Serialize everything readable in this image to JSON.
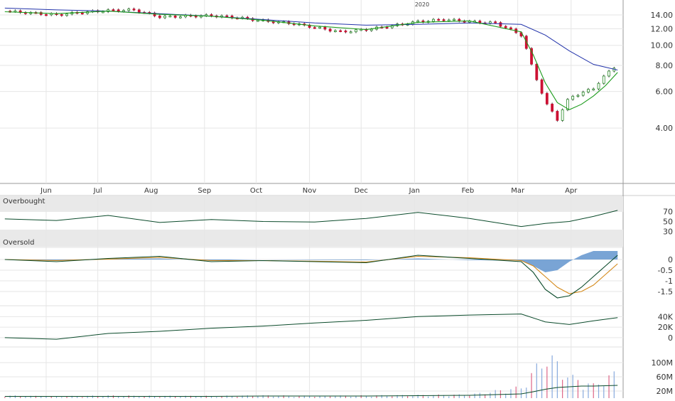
{
  "chart_data": [
    {
      "type": "candlestick",
      "panel": "price",
      "year_label": "2020",
      "x_tick_labels": [
        "Jun",
        "Jul",
        "Aug",
        "Sep",
        "Oct",
        "Nov",
        "Dec",
        "Jan",
        "Feb",
        "Mar",
        "Apr"
      ],
      "y_tick_labels": [
        "14.00",
        "12.00",
        "10.00",
        "8.00",
        "6.00",
        "4.00"
      ],
      "y_ticks": [
        14,
        12,
        10,
        8,
        6,
        4
      ],
      "y_scale": "log",
      "ylim": [
        2.2,
        16
      ],
      "grid": true,
      "colors": {
        "up": "#2a8a2a",
        "down": "#cc1133",
        "ma_short": "#1a9a1a",
        "ma_long": "#2233aa"
      },
      "series": [
        {
          "kind": "close",
          "x": [
            "2019-05-08",
            "2019-05-23",
            "2019-06-07",
            "2019-06-22",
            "2019-07-07",
            "2019-07-22",
            "2019-08-06",
            "2019-08-21",
            "2019-09-05",
            "2019-09-20",
            "2019-10-05",
            "2019-10-20",
            "2019-11-04",
            "2019-11-19",
            "2019-12-04",
            "2019-12-19",
            "2020-01-03",
            "2020-01-18",
            "2020-02-02",
            "2020-02-17",
            "2020-03-03",
            "2020-03-10",
            "2020-03-17",
            "2020-03-24",
            "2020-03-31",
            "2020-04-07",
            "2020-04-14",
            "2020-04-21",
            "2020-04-28"
          ],
          "values": [
            14.6,
            14.3,
            14.0,
            14.4,
            14.7,
            14.8,
            13.7,
            13.8,
            13.9,
            13.6,
            13.1,
            12.8,
            12.2,
            11.6,
            11.9,
            12.4,
            13.0,
            13.3,
            13.0,
            12.8,
            11.2,
            7.5,
            5.3,
            4.4,
            5.6,
            5.9,
            6.2,
            7.2,
            8.1
          ]
        },
        {
          "kind": "moving_average_short",
          "x": [
            "2019-05-08",
            "2019-06-07",
            "2019-07-07",
            "2019-08-06",
            "2019-09-05",
            "2019-10-05",
            "2019-11-04",
            "2019-12-04",
            "2020-01-03",
            "2020-02-02",
            "2020-03-03",
            "2020-03-10",
            "2020-03-17",
            "2020-03-24",
            "2020-03-31",
            "2020-04-07",
            "2020-04-14",
            "2020-04-21",
            "2020-04-28"
          ],
          "values": [
            14.5,
            14.2,
            14.6,
            14.1,
            13.8,
            13.2,
            12.4,
            11.9,
            12.9,
            13.1,
            11.6,
            9.0,
            6.6,
            5.3,
            4.9,
            5.2,
            5.7,
            6.4,
            7.4
          ]
        },
        {
          "kind": "moving_average_long",
          "x": [
            "2019-05-08",
            "2019-06-07",
            "2019-07-07",
            "2019-08-06",
            "2019-09-05",
            "2019-10-05",
            "2019-11-04",
            "2019-12-04",
            "2020-01-03",
            "2020-02-02",
            "2020-03-03",
            "2020-03-17",
            "2020-03-31",
            "2020-04-14",
            "2020-04-28"
          ],
          "values": [
            15.1,
            14.8,
            14.6,
            14.2,
            13.8,
            13.3,
            12.8,
            12.5,
            12.6,
            12.8,
            12.6,
            11.2,
            9.4,
            8.1,
            7.6
          ]
        }
      ]
    },
    {
      "type": "line",
      "panel": "oscillator",
      "labels": [
        "Overbought",
        "Oversold"
      ],
      "y_tick_labels": [
        "70",
        "50",
        "30"
      ],
      "y_ticks": [
        70,
        50,
        30
      ],
      "ylim": [
        0,
        100
      ],
      "bands": [
        [
          70,
          100
        ],
        [
          0,
          30
        ]
      ],
      "x": [
        "2019-05-08",
        "2019-06-07",
        "2019-07-07",
        "2019-08-06",
        "2019-09-05",
        "2019-10-05",
        "2019-11-04",
        "2019-12-04",
        "2020-01-03",
        "2020-02-02",
        "2020-03-03",
        "2020-03-17",
        "2020-03-31",
        "2020-04-14",
        "2020-04-28"
      ],
      "values": [
        55,
        52,
        62,
        48,
        54,
        50,
        49,
        56,
        68,
        56,
        40,
        46,
        50,
        60,
        72
      ]
    },
    {
      "type": "line",
      "panel": "macd",
      "y_tick_labels": [
        "0",
        "-0.5",
        "-1",
        "-1.5"
      ],
      "y_ticks": [
        0,
        -0.5,
        -1,
        -1.5
      ],
      "ylim": [
        -2.1,
        0.5
      ],
      "colors": {
        "macd": "#0a4a2a",
        "signal": "#d4891a",
        "histogram": "#6a9ad0"
      },
      "x": [
        "2019-05-08",
        "2019-06-07",
        "2019-07-07",
        "2019-08-06",
        "2019-09-05",
        "2019-10-05",
        "2019-11-04",
        "2019-12-04",
        "2020-01-03",
        "2020-02-02",
        "2020-03-03",
        "2020-03-10",
        "2020-03-17",
        "2020-03-24",
        "2020-03-31",
        "2020-04-07",
        "2020-04-14",
        "2020-04-21",
        "2020-04-28"
      ],
      "series": [
        {
          "kind": "macd",
          "values": [
            0,
            -0.1,
            0.05,
            0.15,
            -0.1,
            -0.05,
            -0.1,
            -0.15,
            0.2,
            0.05,
            -0.1,
            -0.6,
            -1.4,
            -1.8,
            -1.7,
            -1.3,
            -0.8,
            -0.3,
            0.2
          ]
        },
        {
          "kind": "signal",
          "values": [
            0,
            -0.05,
            0.02,
            0.1,
            -0.05,
            -0.05,
            -0.08,
            -0.12,
            0.15,
            0.08,
            -0.05,
            -0.3,
            -0.8,
            -1.3,
            -1.6,
            -1.5,
            -1.2,
            -0.7,
            -0.2
          ]
        },
        {
          "kind": "histogram",
          "values": [
            0,
            -0.05,
            0.03,
            0.05,
            -0.05,
            0.0,
            -0.02,
            -0.03,
            0.05,
            -0.03,
            -0.05,
            -0.3,
            -0.6,
            -0.5,
            -0.1,
            0.2,
            0.4,
            0.4,
            0.4
          ]
        }
      ]
    },
    {
      "type": "line",
      "panel": "on_balance_volume",
      "y_tick_labels": [
        "40K",
        "20K",
        "0"
      ],
      "y_ticks": [
        40000,
        20000,
        0
      ],
      "ylim": [
        -15000,
        58000
      ],
      "x": [
        "2019-05-08",
        "2019-06-07",
        "2019-07-07",
        "2019-08-06",
        "2019-09-05",
        "2019-10-05",
        "2019-11-04",
        "2019-12-04",
        "2020-01-03",
        "2020-02-02",
        "2020-03-03",
        "2020-03-17",
        "2020-03-31",
        "2020-04-14",
        "2020-04-28"
      ],
      "values": [
        0,
        -3000,
        8000,
        12000,
        18000,
        22000,
        28000,
        33000,
        40000,
        43000,
        45000,
        30000,
        25000,
        32000,
        38000
      ]
    },
    {
      "type": "bar",
      "panel": "volume",
      "y_tick_labels": [
        "100M",
        "60M",
        "20M"
      ],
      "y_ticks": [
        100,
        60,
        20
      ],
      "ylim": [
        0,
        140
      ],
      "x": [
        "2019-05-08",
        "2019-06-07",
        "2019-07-07",
        "2019-08-06",
        "2019-09-05",
        "2019-10-05",
        "2019-11-04",
        "2019-12-04",
        "2020-01-03",
        "2020-02-02",
        "2020-03-03",
        "2020-03-10",
        "2020-03-17",
        "2020-03-24",
        "2020-03-31",
        "2020-04-07",
        "2020-04-14",
        "2020-04-21",
        "2020-04-28"
      ],
      "values": [
        6,
        4,
        6,
        5,
        5,
        6,
        5,
        6,
        7,
        8,
        25,
        60,
        100,
        80,
        50,
        40,
        30,
        45,
        60
      ],
      "moving_average": [
        5,
        5,
        5,
        5,
        5,
        6,
        6,
        6,
        7,
        8,
        12,
        18,
        25,
        30,
        32,
        34,
        34,
        35,
        36
      ]
    }
  ]
}
